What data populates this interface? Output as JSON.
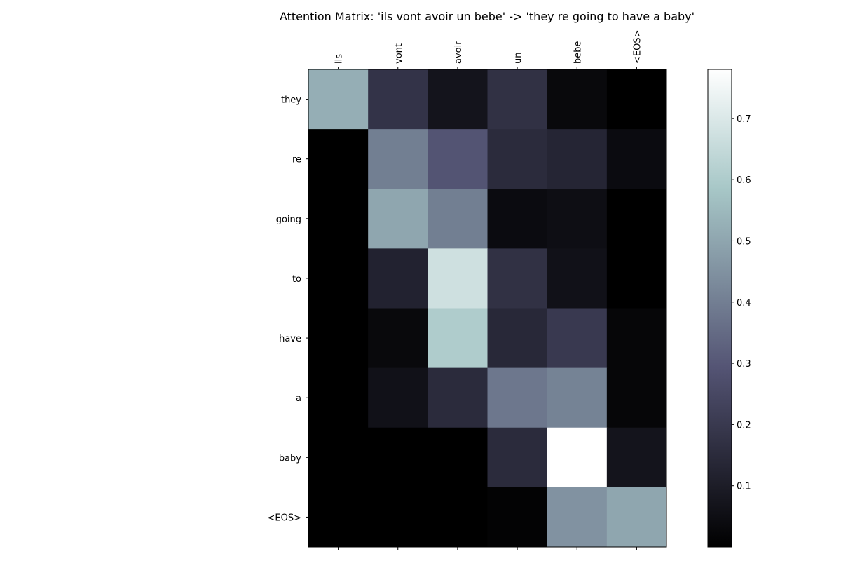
{
  "chart_data": {
    "type": "heatmap",
    "title": "Attention Matrix: 'ils vont avoir un bebe' -> 'they re going to have a baby'",
    "x_labels": [
      "ils",
      "vont",
      "avoir",
      "un",
      "bebe",
      "<EOS>"
    ],
    "y_labels": [
      "they",
      "re",
      "going",
      "to",
      "have",
      "a",
      "baby",
      "<EOS>"
    ],
    "values": [
      [
        0.52,
        0.18,
        0.07,
        0.17,
        0.03,
        0.0
      ],
      [
        0.0,
        0.4,
        0.29,
        0.15,
        0.13,
        0.04
      ],
      [
        0.0,
        0.5,
        0.4,
        0.04,
        0.05,
        0.0
      ],
      [
        0.0,
        0.12,
        0.67,
        0.17,
        0.06,
        0.0
      ],
      [
        0.0,
        0.03,
        0.6,
        0.14,
        0.2,
        0.02
      ],
      [
        0.0,
        0.06,
        0.15,
        0.38,
        0.41,
        0.02
      ],
      [
        0.0,
        0.0,
        0.0,
        0.15,
        0.78,
        0.07
      ],
      [
        0.0,
        0.0,
        0.0,
        0.01,
        0.45,
        0.5
      ]
    ],
    "colormap": "bone",
    "vmin": 0.0,
    "vmax": 0.78,
    "colorbar_ticks": [
      0.1,
      0.2,
      0.3,
      0.4,
      0.5,
      0.6,
      0.7
    ],
    "x_axis_position": "top",
    "grid": false
  }
}
